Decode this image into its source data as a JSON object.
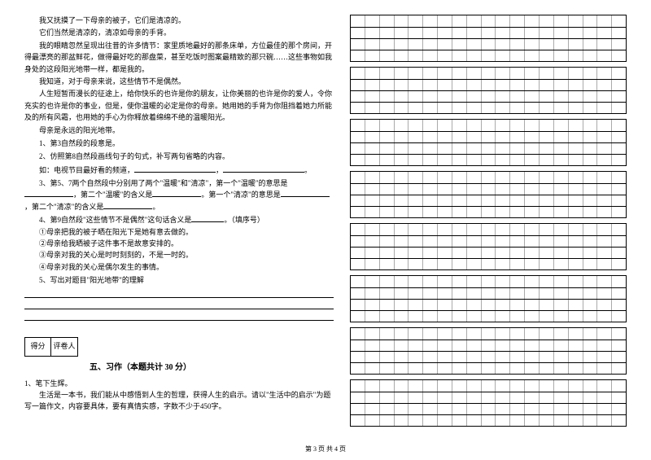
{
  "passage": {
    "p1": "我又抚摸了一下母亲的被子，它们是清凉的。",
    "p2": "它们当然是清凉的，清凉如母亲的手背。",
    "p3": "我的眼睛忽然呈现出往昔的许多情节：家里质地最好的那条床单，方位最佳的那个房间，开得最漂亮的那盆鲜花，做得最好吃的那盘菜，甚至吃饭时图案最精致的那只碗……这些事物如我身处的这段阳光地带一样，都是我的。",
    "p4": "我知道，对于母亲来说，这些情节不是偶然。",
    "p5": "人生短暂而漫长的征途上，给你快乐的也许是你的朋友，让你美丽的也许是你的爱人，令你充实的也许是你的事业，但是，使你温暖的必定是你的母亲。她用她的手背为你阻挡着她力所能及的所有风霜，也用她的手心为你释放着绵绵不绝的温暖阳光。",
    "p6": "母亲是永远的阳光地带。"
  },
  "questions": {
    "q1": "1、第3自然段的段意是",
    "q2a": "2、仿照第8自然段画线句子的句式，补写两句省略的内容。",
    "q2b": "如：电视节目最好看的频道，",
    "q3a": "3、第5、7两个自然段中分别用了两个\"温暖\"和\"清凉\"，第一个\"温暖\"的意思是",
    "q3b": "，第二个\"温暖\"的含义是",
    "q3c": "。第一个\"清凉\"的意思是",
    "q3d": "，第二个\"清凉\"的含义是",
    "q4": "4、第9自然段\"这些情节不是偶然\"这句话含义是",
    "q4tail": "。（填序号）",
    "opt1": "①母亲把我的被子晒在阳光下是她有意去做的。",
    "opt2": "②母亲给我晒被子这件事不是故意安排的。",
    "opt3": "③母亲对我的关心是时时刻刻的，不是一时的。",
    "opt4": "④母亲对我的关心是偶尔发生的事情。",
    "q5": "5、写出对题目\"阳光地带\"的理解"
  },
  "scorebox": {
    "c1": "得分",
    "c2": "评卷人"
  },
  "section5": "五、习作（本题共计 30 分）",
  "writing": {
    "t1": "1、笔下生辉。",
    "t2": "生活是一本书，我们能从中感悟到人生的哲理，获得人生的启示。请以\"生活中的启示\"为题写一篇作文，内容要具体，要有真情实感，字数不少于450字。"
  },
  "footer": "第 3 页 共 4 页",
  "grid": {
    "blocks": 8,
    "rowsPerBlock": 4,
    "cols": 19
  },
  "style": {
    "blankShort": 60,
    "blankMed": 100,
    "blankLong": 150
  }
}
